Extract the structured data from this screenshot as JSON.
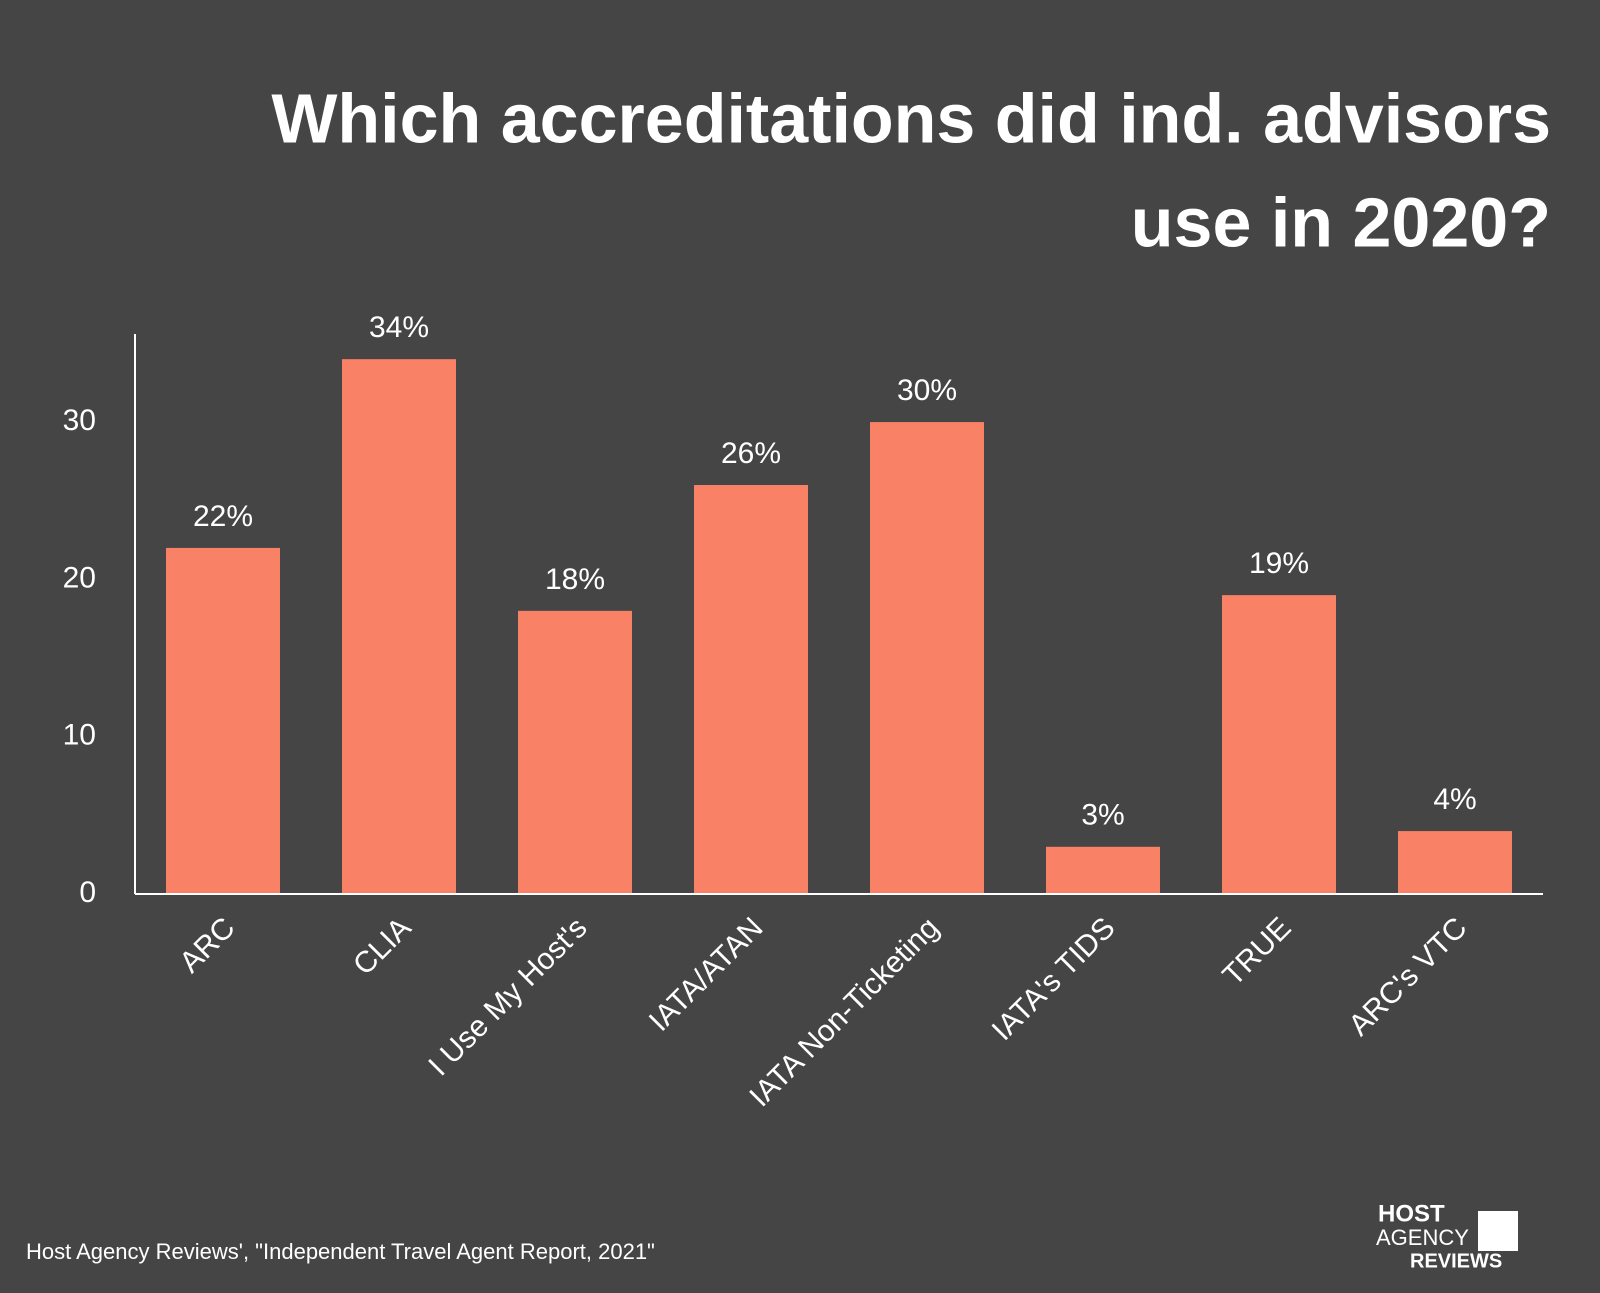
{
  "chart_data": {
    "type": "bar",
    "title": [
      "Which accreditations did ind. advisors",
      "use in 2020?"
    ],
    "categories": [
      "ARC",
      "CLIA",
      "I Use My Host's",
      "IATA/ATAN",
      "IATA Non-Ticketing",
      "IATA's TIDS",
      "TRUE",
      "ARC's VTC"
    ],
    "values": [
      22,
      34,
      18,
      26,
      30,
      3,
      19,
      4
    ],
    "value_labels": [
      "22%",
      "34%",
      "18%",
      "26%",
      "30%",
      "3%",
      "19%",
      "4%"
    ],
    "color": "#f98266",
    "ylim": [
      0,
      35.6
    ],
    "yticks": [
      0,
      10,
      20,
      30
    ],
    "grid": false,
    "source": "Host Agency Reviews', \"Independent Travel Agent Report, 2021\"",
    "logo": [
      "HOST",
      "AGENCY",
      "REVIEWS"
    ]
  }
}
